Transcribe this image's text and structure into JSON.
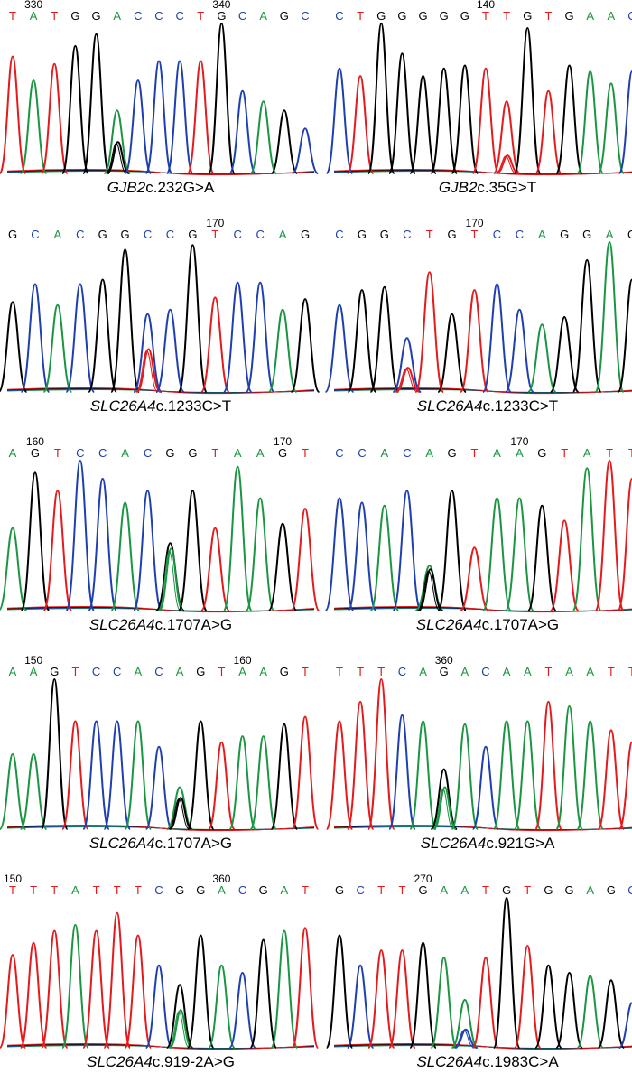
{
  "colors": {
    "A": "#1a9641",
    "C": "#1f3fb0",
    "G": "#000000",
    "T": "#e41a1c"
  },
  "chart_data": [
    {
      "type": "chromatogram",
      "variant_gene": "GJB2",
      "variant_change": "c.232G>A",
      "bases": [
        "T",
        "A",
        "T",
        "G",
        "G",
        "A",
        "C",
        "C",
        "C",
        "T",
        "G",
        "C",
        "A",
        "G",
        "C"
      ],
      "positions": [
        {
          "label": "330",
          "index": 1
        },
        {
          "label": "340",
          "index": 10
        }
      ],
      "het_index": 5,
      "het_secondary": "G",
      "het_secondary_level": 0.5,
      "peak_heights": [
        0.78,
        0.62,
        0.73,
        0.85,
        0.93,
        0.42,
        0.62,
        0.75,
        0.75,
        0.75,
        1.0,
        0.55,
        0.48,
        0.42,
        0.3
      ]
    },
    {
      "type": "chromatogram",
      "variant_gene": "GJB2",
      "variant_change": "c.35G>T",
      "bases": [
        "C",
        "T",
        "G",
        "G",
        "G",
        "G",
        "G",
        "T",
        "T",
        "G",
        "T",
        "G",
        "A",
        "A",
        "C"
      ],
      "positions": [
        {
          "label": "140",
          "index": 7
        }
      ],
      "het_index": 8,
      "het_secondary": "T",
      "het_secondary_level": 0.25,
      "peak_heights": [
        0.7,
        0.65,
        1.0,
        0.8,
        0.65,
        0.7,
        0.72,
        0.7,
        0.48,
        0.97,
        0.55,
        0.72,
        0.68,
        0.6,
        0.68
      ]
    },
    {
      "type": "chromatogram",
      "variant_gene": "SLC26A4",
      "variant_change": "c.1233C>T",
      "bases": [
        "G",
        "C",
        "A",
        "C",
        "G",
        "G",
        "C",
        "C",
        "G",
        "T",
        "C",
        "C",
        "A",
        "G"
      ],
      "positions": [
        {
          "label": "170",
          "index": 9
        }
      ],
      "het_index": 6,
      "het_secondary": "T",
      "het_secondary_level": 0.55,
      "peak_heights": [
        0.6,
        0.72,
        0.58,
        0.72,
        0.75,
        0.95,
        0.52,
        0.55,
        0.98,
        0.63,
        0.73,
        0.73,
        0.55,
        0.62
      ]
    },
    {
      "type": "chromatogram",
      "variant_gene": "SLC26A4",
      "variant_change": "c.1233C>T",
      "bases": [
        "C",
        "G",
        "G",
        "C",
        "T",
        "G",
        "T",
        "C",
        "C",
        "A",
        "G",
        "G",
        "A",
        "G"
      ],
      "positions": [
        {
          "label": "170",
          "index": 6
        }
      ],
      "het_index": 3,
      "het_secondary": "T",
      "het_secondary_level": 0.45,
      "peak_heights": [
        0.58,
        0.68,
        0.7,
        0.36,
        0.8,
        0.52,
        0.68,
        0.72,
        0.55,
        0.45,
        0.5,
        0.88,
        1.0,
        0.75
      ]
    },
    {
      "type": "chromatogram",
      "variant_gene": "SLC26A4",
      "variant_change": "c.1707A>G",
      "bases": [
        "A",
        "G",
        "T",
        "C",
        "C",
        "A",
        "C",
        "G",
        "G",
        "T",
        "A",
        "A",
        "G",
        "T"
      ],
      "positions": [
        {
          "label": "160",
          "index": 1
        },
        {
          "label": "170",
          "index": 12
        }
      ],
      "het_index": 7,
      "het_secondary": "A",
      "het_secondary_level": 0.92,
      "peak_heights": [
        0.55,
        0.92,
        0.8,
        1.0,
        0.88,
        0.72,
        0.8,
        0.45,
        0.8,
        0.55,
        0.96,
        0.75,
        0.58,
        0.68
      ]
    },
    {
      "type": "chromatogram",
      "variant_gene": "SLC26A4",
      "variant_change": "c.1707A>G",
      "bases": [
        "C",
        "C",
        "A",
        "C",
        "A",
        "G",
        "T",
        "A",
        "A",
        "G",
        "T",
        "A",
        "T",
        "T"
      ],
      "positions": [
        {
          "label": "170",
          "index": 8
        }
      ],
      "het_index": 4,
      "het_secondary": "G",
      "het_secondary_level": 0.92,
      "peak_heights": [
        0.75,
        0.72,
        0.7,
        0.8,
        0.3,
        0.8,
        0.42,
        0.75,
        0.75,
        0.7,
        0.6,
        0.95,
        1.0,
        0.88
      ]
    },
    {
      "type": "chromatogram",
      "variant_gene": "SLC26A4",
      "variant_change": "c.1707A>G",
      "bases": [
        "A",
        "A",
        "G",
        "T",
        "C",
        "C",
        "A",
        "C",
        "A",
        "G",
        "T",
        "A",
        "A",
        "G",
        "T"
      ],
      "positions": [
        {
          "label": "150",
          "index": 1
        },
        {
          "label": "160",
          "index": 11
        }
      ],
      "het_index": 8,
      "het_secondary": "G",
      "het_secondary_level": 0.75,
      "peak_heights": [
        0.5,
        0.5,
        1.0,
        0.72,
        0.72,
        0.72,
        0.72,
        0.55,
        0.28,
        0.72,
        0.58,
        0.62,
        0.62,
        0.7,
        0.75
      ]
    },
    {
      "type": "chromatogram",
      "variant_gene": "SLC26A4",
      "variant_change": "c.921G>A",
      "bases": [
        "T",
        "T",
        "T",
        "C",
        "A",
        "G",
        "A",
        "C",
        "A",
        "A",
        "T",
        "A",
        "A",
        "T",
        "T"
      ],
      "positions": [
        {
          "label": "360",
          "index": 5
        }
      ],
      "het_index": 5,
      "het_secondary": "A",
      "het_secondary_level": 0.7,
      "peak_heights": [
        0.72,
        0.85,
        1.0,
        0.76,
        0.72,
        0.4,
        0.7,
        0.55,
        0.72,
        0.72,
        0.85,
        0.82,
        0.72,
        0.66,
        0.58
      ]
    },
    {
      "type": "chromatogram",
      "variant_gene": "SLC26A4",
      "variant_change": "c.919-2A>G",
      "bases": [
        "T",
        "T",
        "T",
        "A",
        "T",
        "T",
        "T",
        "C",
        "G",
        "G",
        "A",
        "C",
        "G",
        "A",
        "T"
      ],
      "positions": [
        {
          "label": "150",
          "index": 0
        },
        {
          "label": "360",
          "index": 10
        }
      ],
      "het_index": 8,
      "het_secondary": "A",
      "het_secondary_level": 0.6,
      "peak_heights": [
        0.62,
        0.7,
        0.78,
        0.82,
        0.78,
        0.9,
        0.75,
        0.55,
        0.42,
        0.75,
        0.55,
        0.5,
        0.72,
        0.78,
        0.8
      ]
    },
    {
      "type": "chromatogram",
      "variant_gene": "SLC26A4",
      "variant_change": "c.1983C>A",
      "bases": [
        "G",
        "C",
        "T",
        "T",
        "G",
        "A",
        "A",
        "T",
        "G",
        "T",
        "G",
        "G",
        "A",
        "G",
        "C"
      ],
      "positions": [
        {
          "label": "270",
          "index": 4
        }
      ],
      "het_index": 6,
      "het_secondary": "C",
      "het_secondary_level": 0.38,
      "peak_heights": [
        0.75,
        0.55,
        0.65,
        0.65,
        0.7,
        0.6,
        0.32,
        0.6,
        1.0,
        0.68,
        0.55,
        0.5,
        0.48,
        0.45,
        0.3
      ]
    }
  ]
}
